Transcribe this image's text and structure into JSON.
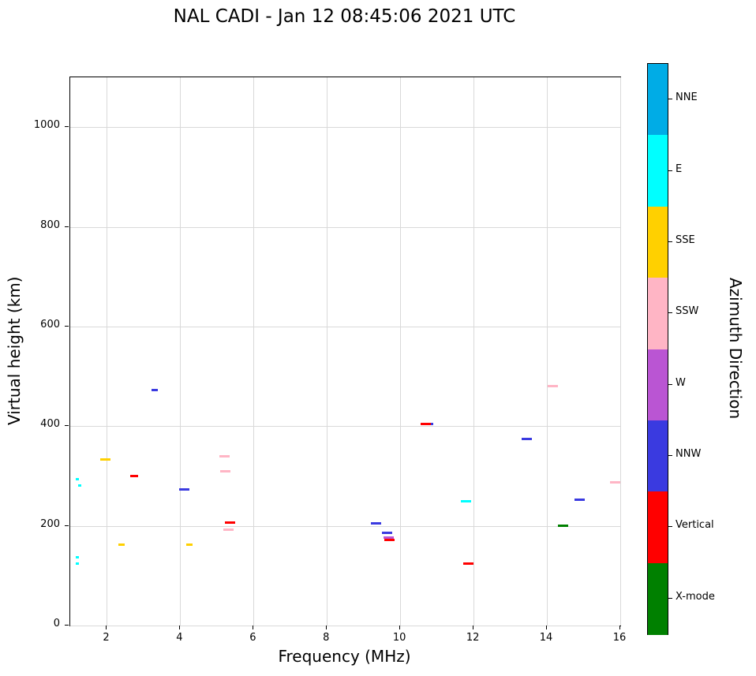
{
  "chart_data": {
    "type": "scatter",
    "title": "NAL CADI - Jan 12 08:45:06 2021 UTC",
    "xlabel": "Frequency (MHz)",
    "ylabel": "Virtual height (km)",
    "xlim": [
      1,
      16
    ],
    "ylim": [
      0,
      1100
    ],
    "xticks": [
      2,
      4,
      6,
      8,
      10,
      12,
      14,
      16
    ],
    "yticks": [
      0,
      200,
      400,
      600,
      800,
      1000
    ],
    "grid": true,
    "marker": "horizontal-dash",
    "legend": {
      "title": "Azimuth Direction",
      "position": "right-colorbar",
      "entries": [
        {
          "label": "NNE",
          "color": "#00ACE6"
        },
        {
          "label": "E",
          "color": "#00FFFF"
        },
        {
          "label": "SSE",
          "color": "#FFD000"
        },
        {
          "label": "SSW",
          "color": "#FFB5C5"
        },
        {
          "label": "W",
          "color": "#BA55D3"
        },
        {
          "label": "NNW",
          "color": "#3A3AE0"
        },
        {
          "label": "Vertical",
          "color": "#FF0000"
        },
        {
          "label": "X-mode",
          "color": "#008000"
        }
      ]
    },
    "series": [
      {
        "name": "NNE",
        "color": "#00ACE6",
        "points": []
      },
      {
        "name": "E",
        "color": "#00FFFF",
        "points": [
          [
            1.2,
            293,
            4
          ],
          [
            1.25,
            281,
            4
          ],
          [
            1.2,
            137,
            4
          ],
          [
            1.2,
            124,
            4
          ],
          [
            11.8,
            250
          ]
        ]
      },
      {
        "name": "SSE",
        "color": "#FFD000",
        "points": [
          [
            1.95,
            333
          ],
          [
            2.4,
            162,
            8
          ],
          [
            4.25,
            162,
            8
          ]
        ]
      },
      {
        "name": "SSW",
        "color": "#FFB5C5",
        "points": [
          [
            5.2,
            340
          ],
          [
            5.22,
            310
          ],
          [
            5.32,
            193
          ],
          [
            14.15,
            480
          ],
          [
            15.85,
            288
          ]
        ]
      },
      {
        "name": "W",
        "color": "#BA55D3",
        "points": [
          [
            9.68,
            176
          ]
        ]
      },
      {
        "name": "NNW",
        "color": "#3A3AE0",
        "points": [
          [
            3.3,
            472,
            8
          ],
          [
            4.1,
            273
          ],
          [
            9.35,
            205
          ],
          [
            9.65,
            186
          ],
          [
            10.82,
            404,
            8
          ],
          [
            13.45,
            375
          ],
          [
            14.9,
            253
          ]
        ]
      },
      {
        "name": "Vertical",
        "color": "#FF0000",
        "points": [
          [
            2.75,
            300,
            10
          ],
          [
            5.35,
            206
          ],
          [
            9.7,
            172
          ],
          [
            10.7,
            405
          ],
          [
            11.85,
            125
          ]
        ]
      },
      {
        "name": "X-mode",
        "color": "#008000",
        "points": [
          [
            14.45,
            201
          ]
        ]
      }
    ]
  }
}
